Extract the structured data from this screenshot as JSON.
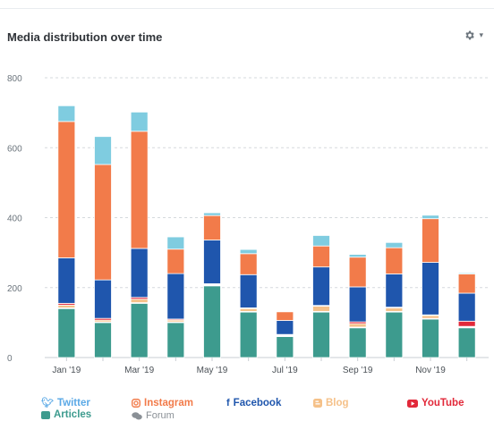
{
  "widget": {
    "title": "Media distribution over time",
    "settings_icon": "gear-icon"
  },
  "chart_data": {
    "type": "bar",
    "stacked": true,
    "title": "Media distribution over time",
    "xlabel": "",
    "ylabel": "",
    "ylim": [
      0,
      800
    ],
    "yticks": [
      0,
      200,
      400,
      600,
      800
    ],
    "grid": true,
    "legend_position": "bottom",
    "categories": [
      "Jan '19",
      "Feb '19",
      "Mar '19",
      "Apr '19",
      "May '19",
      "Jun '19",
      "Jul '19",
      "Aug '19",
      "Sep '19",
      "Oct '19",
      "Nov '19",
      "Dec '19"
    ],
    "xtick_labels": [
      "Jan '19",
      "",
      "Mar '19",
      "",
      "May '19",
      "",
      "Jul '19",
      "",
      "Sep '19",
      "",
      "Nov '19",
      ""
    ],
    "series": [
      {
        "name": "Articles",
        "color": "#3d9b8e",
        "values": [
          140,
          100,
          155,
          100,
          205,
          130,
          60,
          130,
          85,
          130,
          110,
          85
        ]
      },
      {
        "name": "Forum",
        "color": "#cfd4d8",
        "values": [
          2,
          2,
          2,
          2,
          2,
          2,
          2,
          2,
          2,
          2,
          2,
          2
        ]
      },
      {
        "name": "Blog",
        "color": "#f5c189",
        "values": [
          8,
          5,
          10,
          5,
          2,
          8,
          2,
          15,
          10,
          10,
          8,
          2
        ]
      },
      {
        "name": "YouTube",
        "color": "#e2293a",
        "values": [
          5,
          5,
          5,
          3,
          2,
          2,
          2,
          2,
          5,
          2,
          2,
          15
        ]
      },
      {
        "name": "Facebook",
        "color": "#1f56ad",
        "values": [
          130,
          110,
          140,
          130,
          125,
          95,
          40,
          110,
          100,
          95,
          150,
          80
        ]
      },
      {
        "name": "Instagram",
        "color": "#f27b4a",
        "values": [
          390,
          330,
          335,
          70,
          70,
          60,
          25,
          60,
          85,
          75,
          125,
          55
        ]
      },
      {
        "name": "Twitter",
        "color": "#7fcce0",
        "values": [
          45,
          80,
          55,
          35,
          8,
          12,
          2,
          30,
          8,
          15,
          10,
          3
        ]
      }
    ]
  },
  "legend": [
    {
      "name": "Twitter",
      "icon": "twitter-icon",
      "color": "#5aa9e6"
    },
    {
      "name": "Instagram",
      "icon": "instagram-icon",
      "color": "#f27b4a"
    },
    {
      "name": "Facebook",
      "icon": "facebook-icon",
      "color": "#1f56ad"
    },
    {
      "name": "Blog",
      "icon": "blog-icon",
      "color": "#f5c189"
    },
    {
      "name": "YouTube",
      "icon": "youtube-icon",
      "color": "#e2293a"
    },
    {
      "name": "Articles",
      "icon": "articles-icon",
      "color": "#3d9b8e"
    },
    {
      "name": "Forum",
      "icon": "forum-icon",
      "color": "#8a9096"
    }
  ]
}
